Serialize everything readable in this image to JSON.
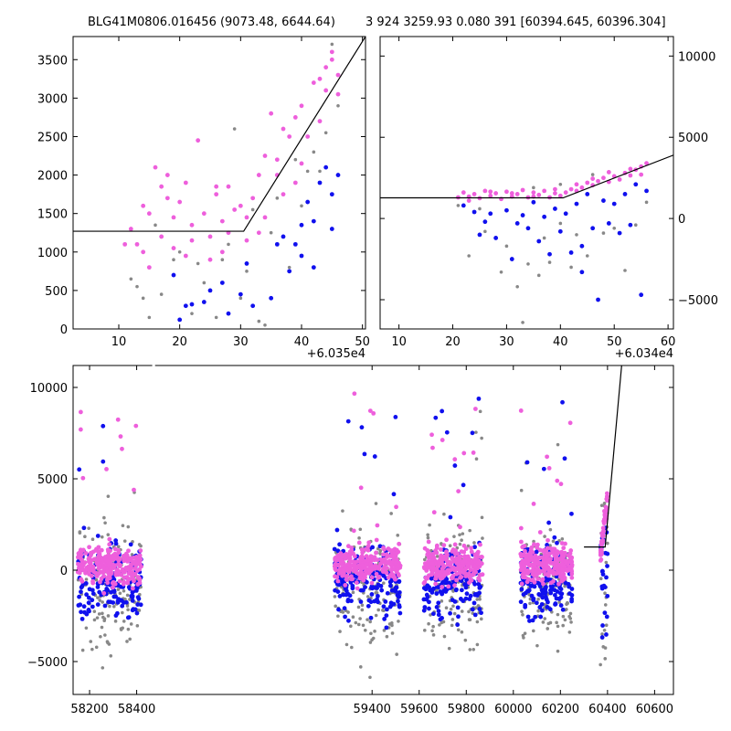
{
  "title_left": "BLG41M0806.016456 (9073.48, 6644.64)",
  "title_right": "3 924 3259.93 0.080 391 [60394.645, 60396.304]",
  "colors": {
    "magenta": "#ee5fdc",
    "blue": "#1010ee",
    "gray": "#888888",
    "model_line": "#000000"
  },
  "chart_data": [
    {
      "type": "scatter",
      "panel": "top-left zoom",
      "x_offset_label": "+6.035e4",
      "xlim": [
        2.5,
        50.5
      ],
      "ylim": [
        0,
        3800
      ],
      "x_ticks": [
        "10",
        "20",
        "30",
        "40",
        "50"
      ],
      "y_ticks": [
        "0",
        "500",
        "1000",
        "1500",
        "2000",
        "2500",
        "3000",
        "3500"
      ],
      "y_tick_values": [
        0,
        500,
        1000,
        1500,
        2000,
        2500,
        3000,
        3500
      ],
      "x_tick_values": [
        10,
        20,
        30,
        40,
        50
      ],
      "model_line": [
        [
          2.5,
          1270
        ],
        [
          30.5,
          1270
        ],
        [
          50.5,
          3800
        ]
      ],
      "series": [
        {
          "color_key": "magenta",
          "points": [
            [
              12,
              1300
            ],
            [
              13,
              1100
            ],
            [
              14,
              1600
            ],
            [
              15,
              1500
            ],
            [
              16,
              2100
            ],
            [
              17,
              1850
            ],
            [
              18,
              1700
            ],
            [
              19,
              1450
            ],
            [
              20,
              1650
            ],
            [
              21,
              1900
            ],
            [
              22,
              1350
            ],
            [
              23,
              2450
            ],
            [
              24,
              1500
            ],
            [
              25,
              1200
            ],
            [
              26,
              1750
            ],
            [
              27,
              1400
            ],
            [
              28,
              1850
            ],
            [
              29,
              1550
            ],
            [
              30,
              1600
            ],
            [
              31,
              1450
            ],
            [
              32,
              1700
            ],
            [
              33,
              2000
            ],
            [
              34,
              2250
            ],
            [
              35,
              2800
            ],
            [
              36,
              2000
            ],
            [
              37,
              2600
            ],
            [
              38,
              2500
            ],
            [
              39,
              2750
            ],
            [
              40,
              2900
            ],
            [
              41,
              2500
            ],
            [
              42,
              3200
            ],
            [
              43,
              3250
            ],
            [
              44,
              3400
            ],
            [
              45,
              3500
            ],
            [
              46,
              3050
            ],
            [
              14,
              1000
            ],
            [
              17,
              1200
            ],
            [
              19,
              1050
            ],
            [
              22,
              1150
            ],
            [
              25,
              900
            ],
            [
              28,
              1250
            ],
            [
              31,
              1150
            ],
            [
              34,
              1450
            ],
            [
              37,
              1750
            ],
            [
              40,
              2150
            ],
            [
              43,
              2700
            ],
            [
              46,
              3300
            ],
            [
              11,
              1100
            ],
            [
              18,
              2000
            ],
            [
              26,
              1850
            ],
            [
              36,
              2200
            ],
            [
              44,
              3100
            ],
            [
              15,
              800
            ],
            [
              21,
              950
            ],
            [
              27,
              1000
            ],
            [
              33,
              1250
            ],
            [
              39,
              1900
            ],
            [
              45,
              3600
            ]
          ]
        },
        {
          "color_key": "blue",
          "points": [
            [
              20,
              120
            ],
            [
              21,
              300
            ],
            [
              22,
              320
            ],
            [
              25,
              500
            ],
            [
              27,
              600
            ],
            [
              28,
              200
            ],
            [
              30,
              450
            ],
            [
              32,
              300
            ],
            [
              35,
              400
            ],
            [
              37,
              1200
            ],
            [
              38,
              750
            ],
            [
              39,
              1100
            ],
            [
              40,
              950
            ],
            [
              41,
              1650
            ],
            [
              42,
              1400
            ],
            [
              43,
              1900
            ],
            [
              44,
              2100
            ],
            [
              45,
              1300
            ],
            [
              46,
              2000
            ],
            [
              19,
              700
            ],
            [
              24,
              350
            ],
            [
              31,
              850
            ],
            [
              36,
              1100
            ],
            [
              42,
              800
            ],
            [
              45,
              1750
            ],
            [
              40,
              1350
            ]
          ]
        },
        {
          "color_key": "gray",
          "points": [
            [
              12,
              650
            ],
            [
              13,
              550
            ],
            [
              14,
              400
            ],
            [
              15,
              150
            ],
            [
              17,
              450
            ],
            [
              19,
              900
            ],
            [
              20,
              1000
            ],
            [
              22,
              200
            ],
            [
              23,
              850
            ],
            [
              24,
              600
            ],
            [
              26,
              150
            ],
            [
              27,
              900
            ],
            [
              29,
              2600
            ],
            [
              30,
              400
            ],
            [
              31,
              750
            ],
            [
              33,
              100
            ],
            [
              34,
              50
            ],
            [
              35,
              1250
            ],
            [
              36,
              1700
            ],
            [
              38,
              800
            ],
            [
              40,
              1600
            ],
            [
              42,
              2300
            ],
            [
              43,
              2050
            ],
            [
              44,
              2550
            ],
            [
              45,
              3700
            ],
            [
              46,
              2900
            ],
            [
              16,
              1350
            ],
            [
              28,
              1100
            ],
            [
              32,
              1550
            ],
            [
              39,
              2200
            ],
            [
              41,
              2050
            ]
          ]
        }
      ]
    },
    {
      "type": "scatter",
      "panel": "top-right zoom",
      "x_offset_label": "+6.034e4",
      "xlim": [
        6.5,
        61
      ],
      "ylim": [
        -6800,
        11200
      ],
      "x_ticks": [
        "10",
        "20",
        "30",
        "40",
        "50",
        "60"
      ],
      "x_tick_values": [
        10,
        20,
        30,
        40,
        50,
        60
      ],
      "y_ticks": [
        "−5000",
        "0",
        "5000",
        "10000"
      ],
      "y_tick_values": [
        -5000,
        0,
        5000,
        10000
      ],
      "model_line": [
        [
          6.5,
          1270
        ],
        [
          40.5,
          1270
        ],
        [
          61,
          3900
        ]
      ],
      "series": [
        {
          "color_key": "magenta",
          "points": [
            [
              21,
              1300
            ],
            [
              22,
              1600
            ],
            [
              23,
              1100
            ],
            [
              24,
              1500
            ],
            [
              25,
              1250
            ],
            [
              26,
              1700
            ],
            [
              27,
              1400
            ],
            [
              28,
              1550
            ],
            [
              29,
              1200
            ],
            [
              30,
              1650
            ],
            [
              31,
              1350
            ],
            [
              32,
              1500
            ],
            [
              33,
              1750
            ],
            [
              34,
              1300
            ],
            [
              35,
              1600
            ],
            [
              36,
              1450
            ],
            [
              37,
              1700
            ],
            [
              38,
              1300
            ],
            [
              39,
              1550
            ],
            [
              40,
              1400
            ],
            [
              41,
              1600
            ],
            [
              42,
              1800
            ],
            [
              43,
              2100
            ],
            [
              44,
              1900
            ],
            [
              45,
              2200
            ],
            [
              46,
              2050
            ],
            [
              47,
              2300
            ],
            [
              48,
              2500
            ],
            [
              49,
              2250
            ],
            [
              50,
              2600
            ],
            [
              51,
              2400
            ],
            [
              52,
              2800
            ],
            [
              53,
              2650
            ],
            [
              54,
              3000
            ],
            [
              55,
              3200
            ],
            [
              56,
              3400
            ],
            [
              55,
              2700
            ],
            [
              53,
              3050
            ],
            [
              49,
              2850
            ],
            [
              46,
              2450
            ],
            [
              43,
              1700
            ],
            [
              39,
              1800
            ],
            [
              35,
              1350
            ],
            [
              31,
              1550
            ],
            [
              27,
              1650
            ],
            [
              23,
              1350
            ]
          ]
        },
        {
          "color_key": "blue",
          "points": [
            [
              22,
              800
            ],
            [
              24,
              400
            ],
            [
              25,
              -1000
            ],
            [
              27,
              300
            ],
            [
              28,
              -1200
            ],
            [
              30,
              500
            ],
            [
              31,
              -2500
            ],
            [
              33,
              200
            ],
            [
              34,
              -600
            ],
            [
              35,
              1000
            ],
            [
              36,
              -1400
            ],
            [
              37,
              100
            ],
            [
              38,
              -2200
            ],
            [
              39,
              600
            ],
            [
              40,
              -800
            ],
            [
              41,
              300
            ],
            [
              42,
              -2100
            ],
            [
              43,
              900
            ],
            [
              44,
              -3300
            ],
            [
              45,
              1500
            ],
            [
              46,
              -600
            ],
            [
              47,
              -5000
            ],
            [
              48,
              1100
            ],
            [
              50,
              900
            ],
            [
              51,
              -900
            ],
            [
              52,
              1500
            ],
            [
              53,
              -400
            ],
            [
              54,
              2100
            ],
            [
              55,
              -4700
            ],
            [
              56,
              1700
            ],
            [
              49,
              -300
            ],
            [
              44,
              -1700
            ],
            [
              32,
              -300
            ],
            [
              26,
              -200
            ]
          ]
        },
        {
          "color_key": "gray",
          "points": [
            [
              21,
              800
            ],
            [
              23,
              -2300
            ],
            [
              25,
              600
            ],
            [
              26,
              -800
            ],
            [
              29,
              -3300
            ],
            [
              30,
              -1700
            ],
            [
              32,
              -4200
            ],
            [
              33,
              -6400
            ],
            [
              34,
              -2800
            ],
            [
              36,
              -3500
            ],
            [
              37,
              -1200
            ],
            [
              38,
              -2700
            ],
            [
              40,
              -300
            ],
            [
              42,
              -3000
            ],
            [
              43,
              -1000
            ],
            [
              45,
              -2300
            ],
            [
              48,
              -900
            ],
            [
              50,
              -600
            ],
            [
              52,
              -3200
            ],
            [
              54,
              -400
            ],
            [
              56,
              1000
            ],
            [
              40,
              2100
            ],
            [
              46,
              2700
            ],
            [
              35,
              1900
            ]
          ]
        }
      ]
    },
    {
      "type": "scatter",
      "panel": "bottom full light curve",
      "xlim": [
        58130,
        60680
      ],
      "ylim": [
        -6800,
        11200
      ],
      "x_ticks": [
        "58200",
        "58400",
        "59400",
        "59600",
        "59800",
        "60000",
        "60200",
        "60400",
        "60600"
      ],
      "y_ticks": [
        "−5000",
        "0",
        "5000",
        "10000"
      ],
      "y_tick_values": [
        -5000,
        0,
        5000,
        10000
      ],
      "model_line": [
        [
          60300,
          1270
        ],
        [
          60390,
          1270
        ],
        [
          60460,
          11200
        ]
      ],
      "seasons": [
        [
          58150,
          58420
        ],
        [
          59240,
          59520
        ],
        [
          59620,
          59870
        ],
        [
          60030,
          60250
        ],
        [
          60360,
          60400
        ]
      ],
      "series": [
        {
          "color_key": "magenta",
          "band_center": 300,
          "band_halfwidth": 900
        },
        {
          "color_key": "blue",
          "band_center": -600,
          "band_halfwidth": 1800
        },
        {
          "color_key": "gray",
          "band_center": -1000,
          "band_halfwidth": 3000
        }
      ]
    }
  ]
}
